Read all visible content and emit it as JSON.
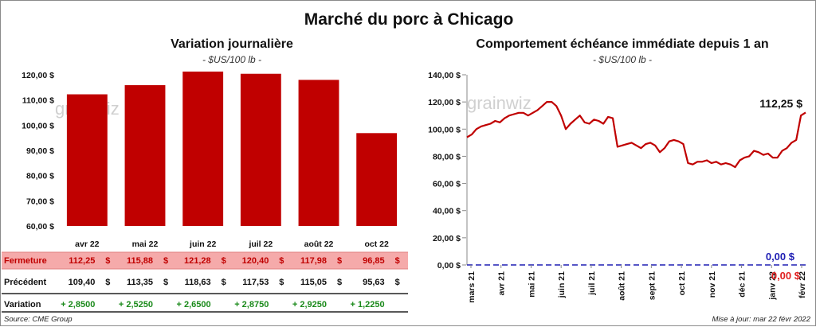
{
  "title": "Marché du porc à Chicago",
  "source": "Source: CME Group",
  "updated": "Mise à jour: mar 22 févr 2022",
  "watermark": "grainwiz",
  "colors": {
    "bar": "#c00000",
    "line": "#c00000",
    "zero_line": "#1f1fb4",
    "row_highlight": "#f5aaaa",
    "positive": "#1a8a1a"
  },
  "chart_data": [
    {
      "type": "bar",
      "title": "Variation journalière",
      "subtitle": "- $US/100 lb -",
      "categories": [
        "avr 22",
        "mai 22",
        "juin 22",
        "juil 22",
        "août 22",
        "oct 22"
      ],
      "values": [
        112.25,
        115.88,
        121.28,
        120.4,
        117.98,
        96.85
      ],
      "ylim": [
        60,
        120
      ],
      "yticks": [
        60,
        70,
        80,
        90,
        100,
        110,
        120
      ],
      "ytick_labels": [
        "60,00 $",
        "70,00 $",
        "80,00 $",
        "90,00 $",
        "100,00 $",
        "110,00 $",
        "120,00 $"
      ],
      "grid": false
    },
    {
      "type": "line",
      "title": "Comportement  échéance immédiate depuis 1 an",
      "subtitle": "- $US/100 lb -",
      "x_labels": [
        "mars 21",
        "avr 21",
        "mai 21",
        "juin 21",
        "juil 21",
        "août 21",
        "sept 21",
        "oct 21",
        "nov 21",
        "déc 21",
        "janv 22",
        "févr 22"
      ],
      "ylim": [
        0,
        140
      ],
      "yticks": [
        0,
        20,
        40,
        60,
        80,
        100,
        120,
        140
      ],
      "ytick_labels": [
        "0,00 $",
        "20,00 $",
        "40,00 $",
        "60,00 $",
        "80,00 $",
        "100,00 $",
        "120,00 $",
        "140,00 $"
      ],
      "grid": false,
      "series": [
        {
          "values": [
            94,
            96,
            100,
            102,
            103,
            104,
            106,
            105,
            108,
            110,
            111,
            112,
            112,
            110,
            112,
            114,
            117,
            120,
            120,
            117,
            110,
            100,
            104,
            107,
            110,
            105,
            104,
            107,
            106,
            104,
            109,
            108,
            87,
            88,
            89,
            90,
            88,
            86,
            89,
            90,
            88,
            83,
            86,
            91,
            92,
            91,
            89,
            75,
            74,
            76,
            76,
            77,
            75,
            76,
            74,
            75,
            74,
            72,
            77,
            79,
            80,
            84,
            83,
            81,
            82,
            79,
            79,
            84,
            86,
            90,
            92,
            110,
            112.25
          ]
        },
        {
          "values": [
            0,
            0
          ]
        }
      ],
      "annotations": [
        {
          "text": "112,25 $",
          "series": 0
        },
        {
          "text": "0,00 $",
          "series": 1
        },
        {
          "text": "0,00 $",
          "series": 1
        }
      ]
    }
  ],
  "table": {
    "rows": [
      {
        "label": "Fermeture",
        "values": [
          "112,25",
          "115,88",
          "121,28",
          "120,40",
          "117,98",
          "96,85"
        ],
        "suffix": "$"
      },
      {
        "label": "Précédent",
        "values": [
          "109,40",
          "113,35",
          "118,63",
          "117,53",
          "115,05",
          "95,63"
        ],
        "suffix": "$"
      },
      {
        "label": "Variation",
        "values": [
          "+ 2,8500",
          "+ 2,5250",
          "+ 2,6500",
          "+ 2,8750",
          "+ 2,9250",
          "+ 1,2250"
        ],
        "suffix": ""
      }
    ]
  }
}
